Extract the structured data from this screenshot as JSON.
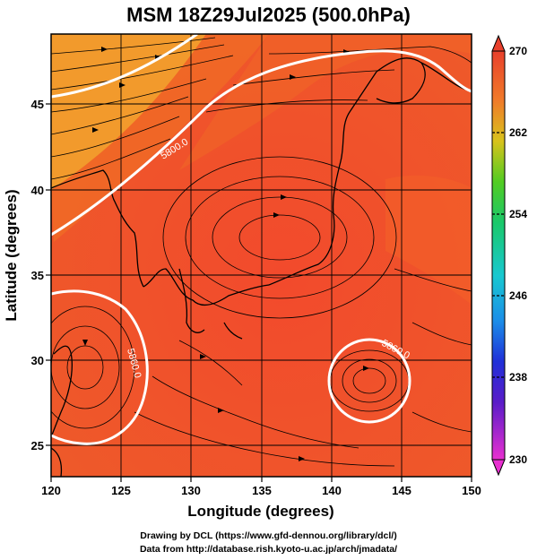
{
  "title": "MSM 18Z29Jul2025 (500.0hPa)",
  "credit_line1": "Drawing by DCL (https://www.gfd-dennou.org/library/dcl/)",
  "credit_line2": "Data from http://database.rish.kyoto-u.ac.jp/arch/jmadata/",
  "axes": {
    "xlabel": "Longitude (degrees)",
    "ylabel": "Latitude  (degrees)",
    "xlim": [
      120,
      150
    ],
    "ylim": [
      22.5,
      47.6
    ],
    "xticks": [
      "120",
      "125",
      "130",
      "135",
      "140",
      "145",
      "150"
    ],
    "yticks": [
      "25",
      "30",
      "35",
      "40",
      "45"
    ]
  },
  "colorbar": {
    "range": [
      230,
      270
    ],
    "tick_labels": [
      "270",
      "262",
      "254",
      "246",
      "238",
      "230"
    ]
  },
  "contours": [
    {
      "label": "5800.0"
    },
    {
      "label": "5860.0"
    },
    {
      "label": "5860.0"
    }
  ],
  "colors": {
    "field_main": "#f24a2c",
    "field_warm": "#f0651f",
    "field_orange": "#f29a2c",
    "contour": "#ffffff",
    "streamline": "#000000"
  }
}
